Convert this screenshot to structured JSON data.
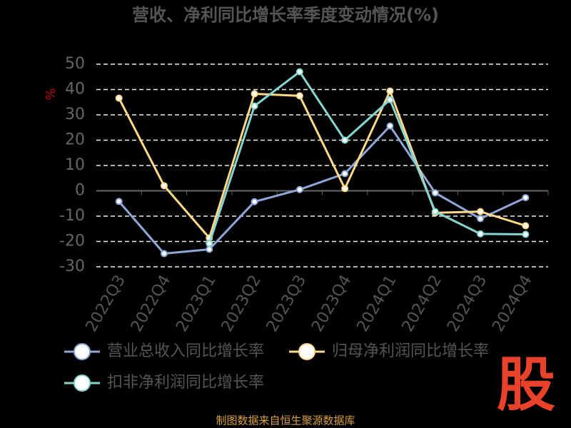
{
  "chart_data": {
    "type": "line",
    "title": "营收、净利同比增长率季度变动情况(%)",
    "y_label": "%",
    "categories": [
      "2022Q3",
      "2022Q4",
      "2023Q1",
      "2023Q2",
      "2023Q3",
      "2023Q4",
      "2024Q1",
      "2024Q2",
      "2024Q3",
      "2024Q4"
    ],
    "series": [
      {
        "name": "营业总收入同比增长率",
        "color": "#8fa6d8",
        "values": [
          -4.2,
          -24.8,
          -23.1,
          -4.3,
          0.5,
          6.8,
          25.6,
          -0.8,
          -11,
          -2.7
        ]
      },
      {
        "name": "归母净利润同比增长率",
        "color": "#ffd98a",
        "values": [
          36.6,
          2,
          -18.6,
          38.3,
          37.5,
          0.9,
          39.4,
          -8.7,
          -8.2,
          -13.8
        ]
      },
      {
        "name": "扣非净利润同比增长率",
        "color": "#86d6cf",
        "values": [
          null,
          null,
          -20.8,
          33.5,
          47,
          20,
          36,
          -8.2,
          -17,
          -17.2
        ]
      }
    ],
    "ylim": [
      -30,
      50
    ],
    "yticks": [
      -30,
      -20,
      -10,
      0,
      10,
      20,
      30,
      40,
      50
    ],
    "grid": true,
    "source": "制图数据来自恒生聚源数据库",
    "logo": "股"
  }
}
